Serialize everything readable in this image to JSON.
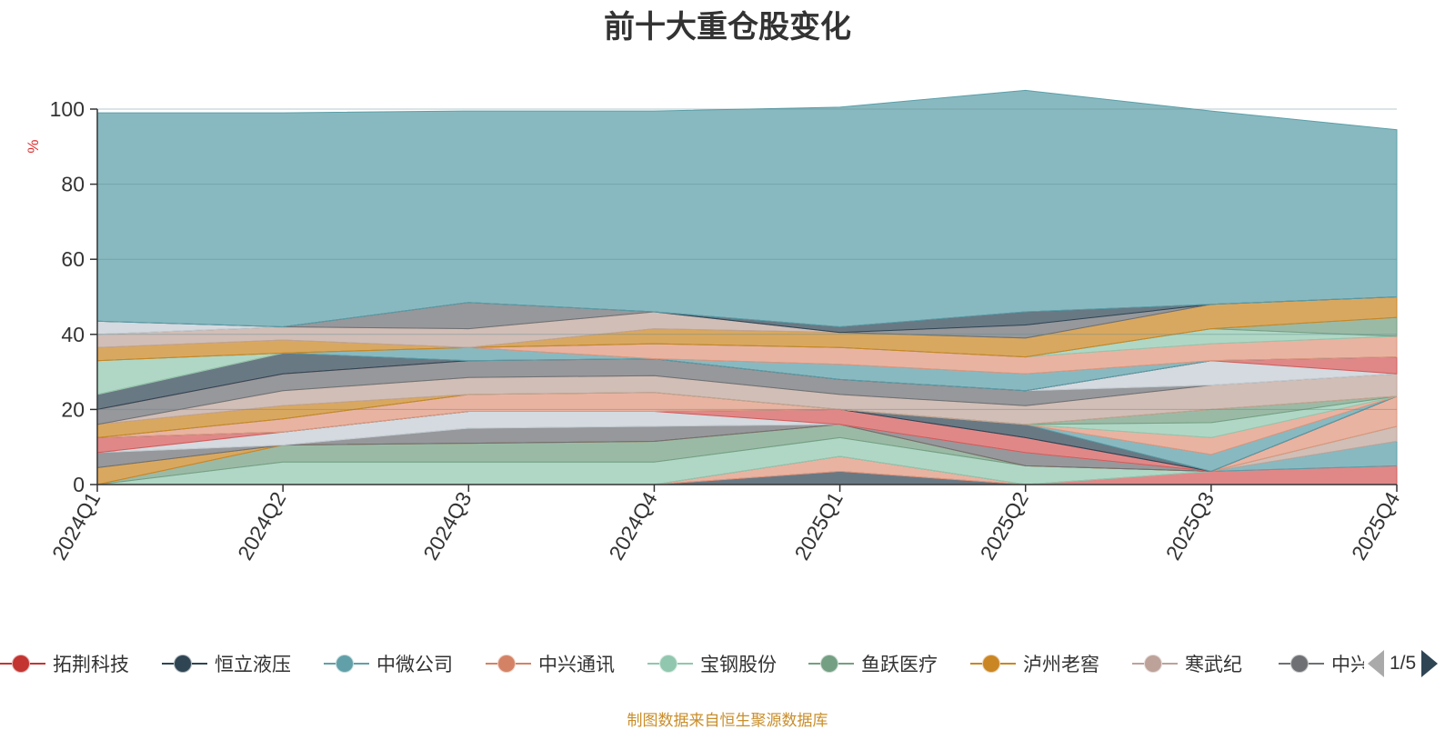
{
  "chart_data": {
    "type": "area",
    "stacked": true,
    "title": "前十大重仓股变化",
    "ylabel": "%",
    "ylim": [
      0,
      100
    ],
    "yticks": [
      0,
      20,
      40,
      60,
      80,
      100
    ],
    "categories": [
      "2024Q1",
      "2024Q2",
      "2024Q3",
      "2024Q4",
      "2025Q1",
      "2025Q2",
      "2025Q3",
      "2025Q4"
    ],
    "grid": true,
    "legend_position": "bottom",
    "legend_page": "1/5",
    "series": [
      {
        "color": "#2f4554",
        "values": [
          0,
          0,
          0,
          0,
          3.5,
          0,
          0,
          0
        ]
      },
      {
        "color": "#e0967d",
        "values": [
          0,
          0,
          0,
          0,
          4,
          0,
          0,
          0
        ]
      },
      {
        "color": "#d45a5a",
        "values": [
          0,
          0,
          0,
          0,
          0,
          0,
          3.5,
          5
        ]
      },
      {
        "color": "#5b9ea8",
        "values": [
          0,
          0,
          0,
          0,
          0,
          0,
          0,
          6.5
        ]
      },
      {
        "color": "#bfa59a",
        "values": [
          0,
          0,
          0,
          0,
          0,
          0,
          0,
          4
        ]
      },
      {
        "color": "#91c7ae",
        "values": [
          0,
          6,
          6,
          6,
          5,
          5,
          0,
          0
        ]
      },
      {
        "color": "#749f83",
        "values": [
          0,
          4.5,
          5,
          5.5,
          3.5,
          0,
          0,
          0
        ]
      },
      {
        "color": "#e0967d",
        "values": [
          0,
          0,
          0,
          0,
          0,
          0,
          0,
          8
        ]
      },
      {
        "color": "#ca8622",
        "values": [
          4.5,
          0,
          0,
          0,
          0,
          0,
          0,
          0
        ]
      },
      {
        "color": "#6e7074",
        "values": [
          4,
          0,
          4,
          4,
          0,
          3.5,
          0,
          0
        ]
      },
      {
        "color": "#c4ccd3",
        "values": [
          0,
          3.5,
          4.5,
          4,
          0,
          0,
          0,
          0
        ]
      },
      {
        "color": "#d45a5a",
        "values": [
          4,
          0,
          0,
          0,
          4,
          4,
          0,
          0
        ]
      },
      {
        "color": "#2f4554",
        "values": [
          0,
          0,
          0,
          0,
          0,
          3.5,
          0,
          0
        ]
      },
      {
        "color": "#5b9ea8",
        "values": [
          0,
          0,
          0,
          0,
          0,
          0,
          4.5,
          0
        ]
      },
      {
        "color": "#e0967d",
        "values": [
          0,
          3.5,
          4.5,
          5,
          0,
          0,
          4.5,
          0
        ]
      },
      {
        "color": "#91c7ae",
        "values": [
          0,
          0,
          0,
          0,
          0,
          0,
          4,
          0
        ]
      },
      {
        "color": "#749f83",
        "values": [
          0,
          0,
          0,
          0,
          0,
          0,
          3.5,
          0
        ]
      },
      {
        "color": "#ca8622",
        "values": [
          3.5,
          3.5,
          0,
          0,
          0,
          0,
          0,
          0
        ]
      },
      {
        "color": "#bfa59a",
        "values": [
          0,
          4,
          4.5,
          4.5,
          4,
          5,
          6.5,
          6
        ]
      },
      {
        "color": "#6e7074",
        "values": [
          4,
          4.5,
          4.5,
          4.5,
          4,
          4,
          0,
          0
        ]
      },
      {
        "color": "#c4ccd3",
        "values": [
          0,
          0,
          0,
          0,
          0,
          0,
          6.5,
          0
        ]
      },
      {
        "color": "#d45a5a",
        "values": [
          0,
          0,
          0,
          0,
          0,
          0,
          0,
          4.5
        ]
      },
      {
        "color": "#2f4554",
        "values": [
          4,
          5.5,
          0,
          0,
          0,
          0,
          0,
          0
        ]
      },
      {
        "color": "#5b9ea8",
        "values": [
          0,
          0,
          3.5,
          0,
          4,
          4.5,
          0,
          0
        ]
      },
      {
        "color": "#e0967d",
        "values": [
          0,
          0,
          0,
          4,
          4.5,
          4.5,
          4.5,
          5.5
        ]
      },
      {
        "color": "#91c7ae",
        "values": [
          9,
          0,
          0,
          0,
          0,
          0,
          4,
          0
        ]
      },
      {
        "color": "#749f83",
        "values": [
          0,
          0,
          0,
          0,
          0,
          0,
          0,
          5
        ]
      },
      {
        "color": "#ca8622",
        "values": [
          3.5,
          3.5,
          0,
          4,
          4,
          5,
          6.5,
          5.5
        ]
      },
      {
        "color": "#bfa59a",
        "values": [
          3.5,
          3.5,
          5,
          4.5,
          0,
          0,
          0,
          0
        ]
      },
      {
        "color": "#6e7074",
        "values": [
          0,
          0,
          7,
          0,
          0,
          3.5,
          0,
          0
        ]
      },
      {
        "color": "#c4ccd3",
        "values": [
          3.5,
          0,
          0,
          0,
          0,
          0,
          0,
          0
        ]
      },
      {
        "color": "#2f4554",
        "values": [
          0,
          0,
          0,
          0,
          1.5,
          3.5,
          0,
          0
        ]
      },
      {
        "color": "#5b9ea8",
        "values": [
          55.5,
          57,
          51,
          53.5,
          58.5,
          59,
          51.5,
          44.5
        ]
      }
    ]
  },
  "legend": [
    {
      "label": "拓荆科技",
      "color": "#c23531"
    },
    {
      "label": "恒立液压",
      "color": "#2f4554"
    },
    {
      "label": "中微公司",
      "color": "#61a0a8"
    },
    {
      "label": "中兴通讯",
      "color": "#d48265"
    },
    {
      "label": "宝钢股份",
      "color": "#91c7ae"
    },
    {
      "label": "鱼跃医疗",
      "color": "#749f83"
    },
    {
      "label": "泸州老窖",
      "color": "#ca8622"
    },
    {
      "label": "寒武纪",
      "color": "#bda29a"
    },
    {
      "label": "中兴",
      "color": "#6e7074"
    }
  ],
  "pager": {
    "page": "1/5"
  },
  "footer": {
    "note": "制图数据来自恒生聚源数据库"
  }
}
